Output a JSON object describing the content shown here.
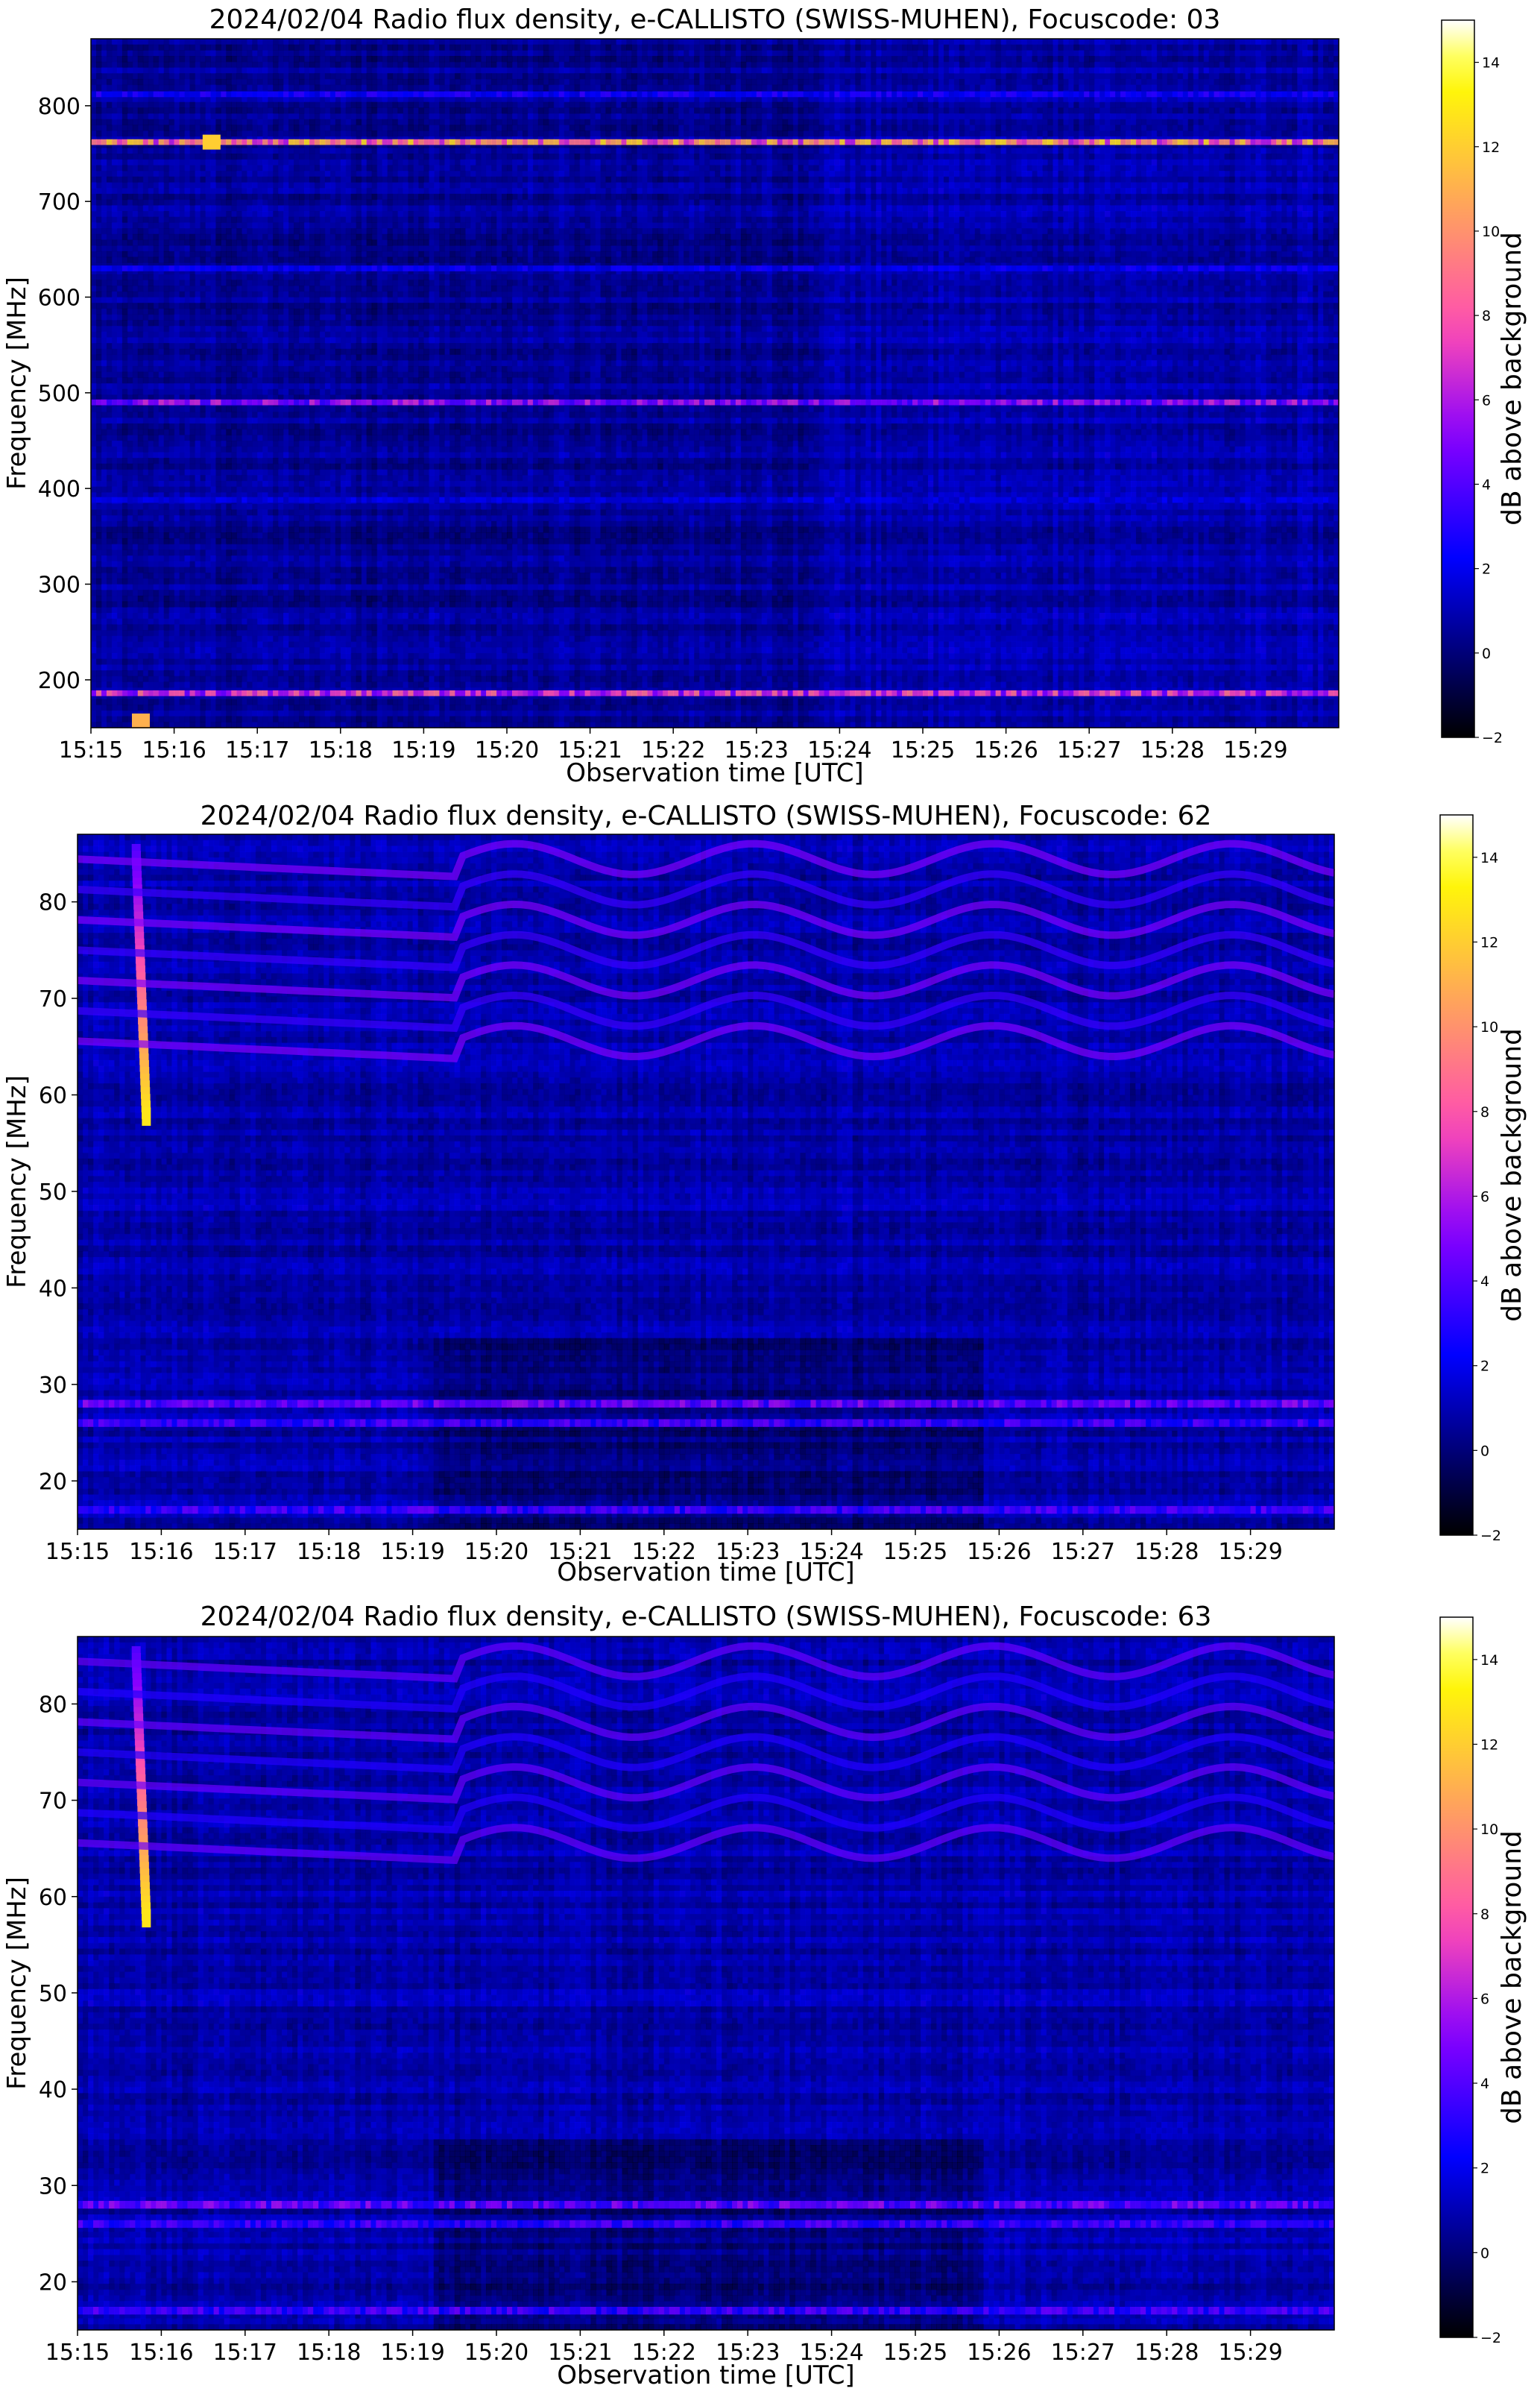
{
  "chart_data": [
    {
      "type": "heatmap",
      "title": "2024/02/04  Radio flux density, e-CALLISTO (SWISS-MUHEN), Focuscode: 03",
      "xlabel": "Observation time [UTC]",
      "ylabel": "Frequency [MHz]",
      "xticks": [
        "15:15",
        "15:16",
        "15:17",
        "15:18",
        "15:19",
        "15:20",
        "15:21",
        "15:22",
        "15:23",
        "15:24",
        "15:25",
        "15:26",
        "15:27",
        "15:28",
        "15:29"
      ],
      "yticks": [
        200,
        300,
        400,
        500,
        600,
        700,
        800
      ],
      "ylim": [
        150,
        870
      ],
      "xlim_minutes": [
        0,
        15
      ],
      "colorbar": {
        "label": "dB above background",
        "ticks": [
          -2,
          0,
          2,
          4,
          6,
          8,
          10,
          12,
          14
        ],
        "range": [
          -2,
          15
        ],
        "colormap": "gnuplot2"
      },
      "features": [
        {
          "kind": "hline",
          "freq": 762,
          "intensity": 11
        },
        {
          "kind": "hline",
          "freq": 812,
          "intensity": 3
        },
        {
          "kind": "hline",
          "freq": 490,
          "intensity": 6
        },
        {
          "kind": "hline",
          "freq": 186,
          "intensity": 8
        },
        {
          "kind": "hline",
          "freq": 630,
          "intensity": 2.5
        },
        {
          "kind": "hline",
          "freq": 388,
          "intensity": 2
        },
        {
          "kind": "spot",
          "t": 0.6,
          "freq": 157,
          "intensity": 11
        },
        {
          "kind": "spot",
          "t": 1.45,
          "freq": 762,
          "intensity": 12
        }
      ]
    },
    {
      "type": "heatmap",
      "title": "2024/02/04  Radio flux density, e-CALLISTO (SWISS-MUHEN), Focuscode: 62",
      "xlabel": "Observation time [UTC]",
      "ylabel": "Frequency [MHz]",
      "xticks": [
        "15:15",
        "15:16",
        "15:17",
        "15:18",
        "15:19",
        "15:20",
        "15:21",
        "15:22",
        "15:23",
        "15:24",
        "15:25",
        "15:26",
        "15:27",
        "15:28",
        "15:29"
      ],
      "yticks": [
        20,
        30,
        40,
        50,
        60,
        70,
        80
      ],
      "ylim": [
        15,
        87
      ],
      "xlim_minutes": [
        0,
        15
      ],
      "colorbar": {
        "label": "dB above background",
        "ticks": [
          -2,
          0,
          2,
          4,
          6,
          8,
          10,
          12,
          14
        ],
        "range": [
          -2,
          15
        ],
        "colormap": "gnuplot2"
      },
      "features": [
        {
          "kind": "burst",
          "t": 0.7,
          "freq_from": 86,
          "freq_to": 58,
          "intensity": 13
        },
        {
          "kind": "wavy_bands",
          "freq_from": 64,
          "freq_to": 86,
          "intensity": 5
        },
        {
          "kind": "hline",
          "freq": 28,
          "intensity": 5
        },
        {
          "kind": "hline",
          "freq": 26,
          "intensity": 4
        },
        {
          "kind": "hline",
          "freq": 17,
          "intensity": 4
        }
      ]
    },
    {
      "type": "heatmap",
      "title": "2024/02/04  Radio flux density, e-CALLISTO (SWISS-MUHEN), Focuscode: 63",
      "xlabel": "Observation time [UTC]",
      "ylabel": "Frequency [MHz]",
      "xticks": [
        "15:15",
        "15:16",
        "15:17",
        "15:18",
        "15:19",
        "15:20",
        "15:21",
        "15:22",
        "15:23",
        "15:24",
        "15:25",
        "15:26",
        "15:27",
        "15:28",
        "15:29"
      ],
      "yticks": [
        20,
        30,
        40,
        50,
        60,
        70,
        80
      ],
      "ylim": [
        15,
        87
      ],
      "xlim_minutes": [
        0,
        15
      ],
      "colorbar": {
        "label": "dB above background",
        "ticks": [
          -2,
          0,
          2,
          4,
          6,
          8,
          10,
          12,
          14
        ],
        "range": [
          -2,
          15
        ],
        "colormap": "gnuplot2"
      },
      "features": [
        {
          "kind": "burst",
          "t": 0.7,
          "freq_from": 86,
          "freq_to": 58,
          "intensity": 13
        },
        {
          "kind": "wavy_bands",
          "freq_from": 64,
          "freq_to": 86,
          "intensity": 4.5
        },
        {
          "kind": "hline",
          "freq": 28,
          "intensity": 5
        },
        {
          "kind": "hline",
          "freq": 26,
          "intensity": 4
        },
        {
          "kind": "hline",
          "freq": 17,
          "intensity": 4
        }
      ]
    }
  ]
}
